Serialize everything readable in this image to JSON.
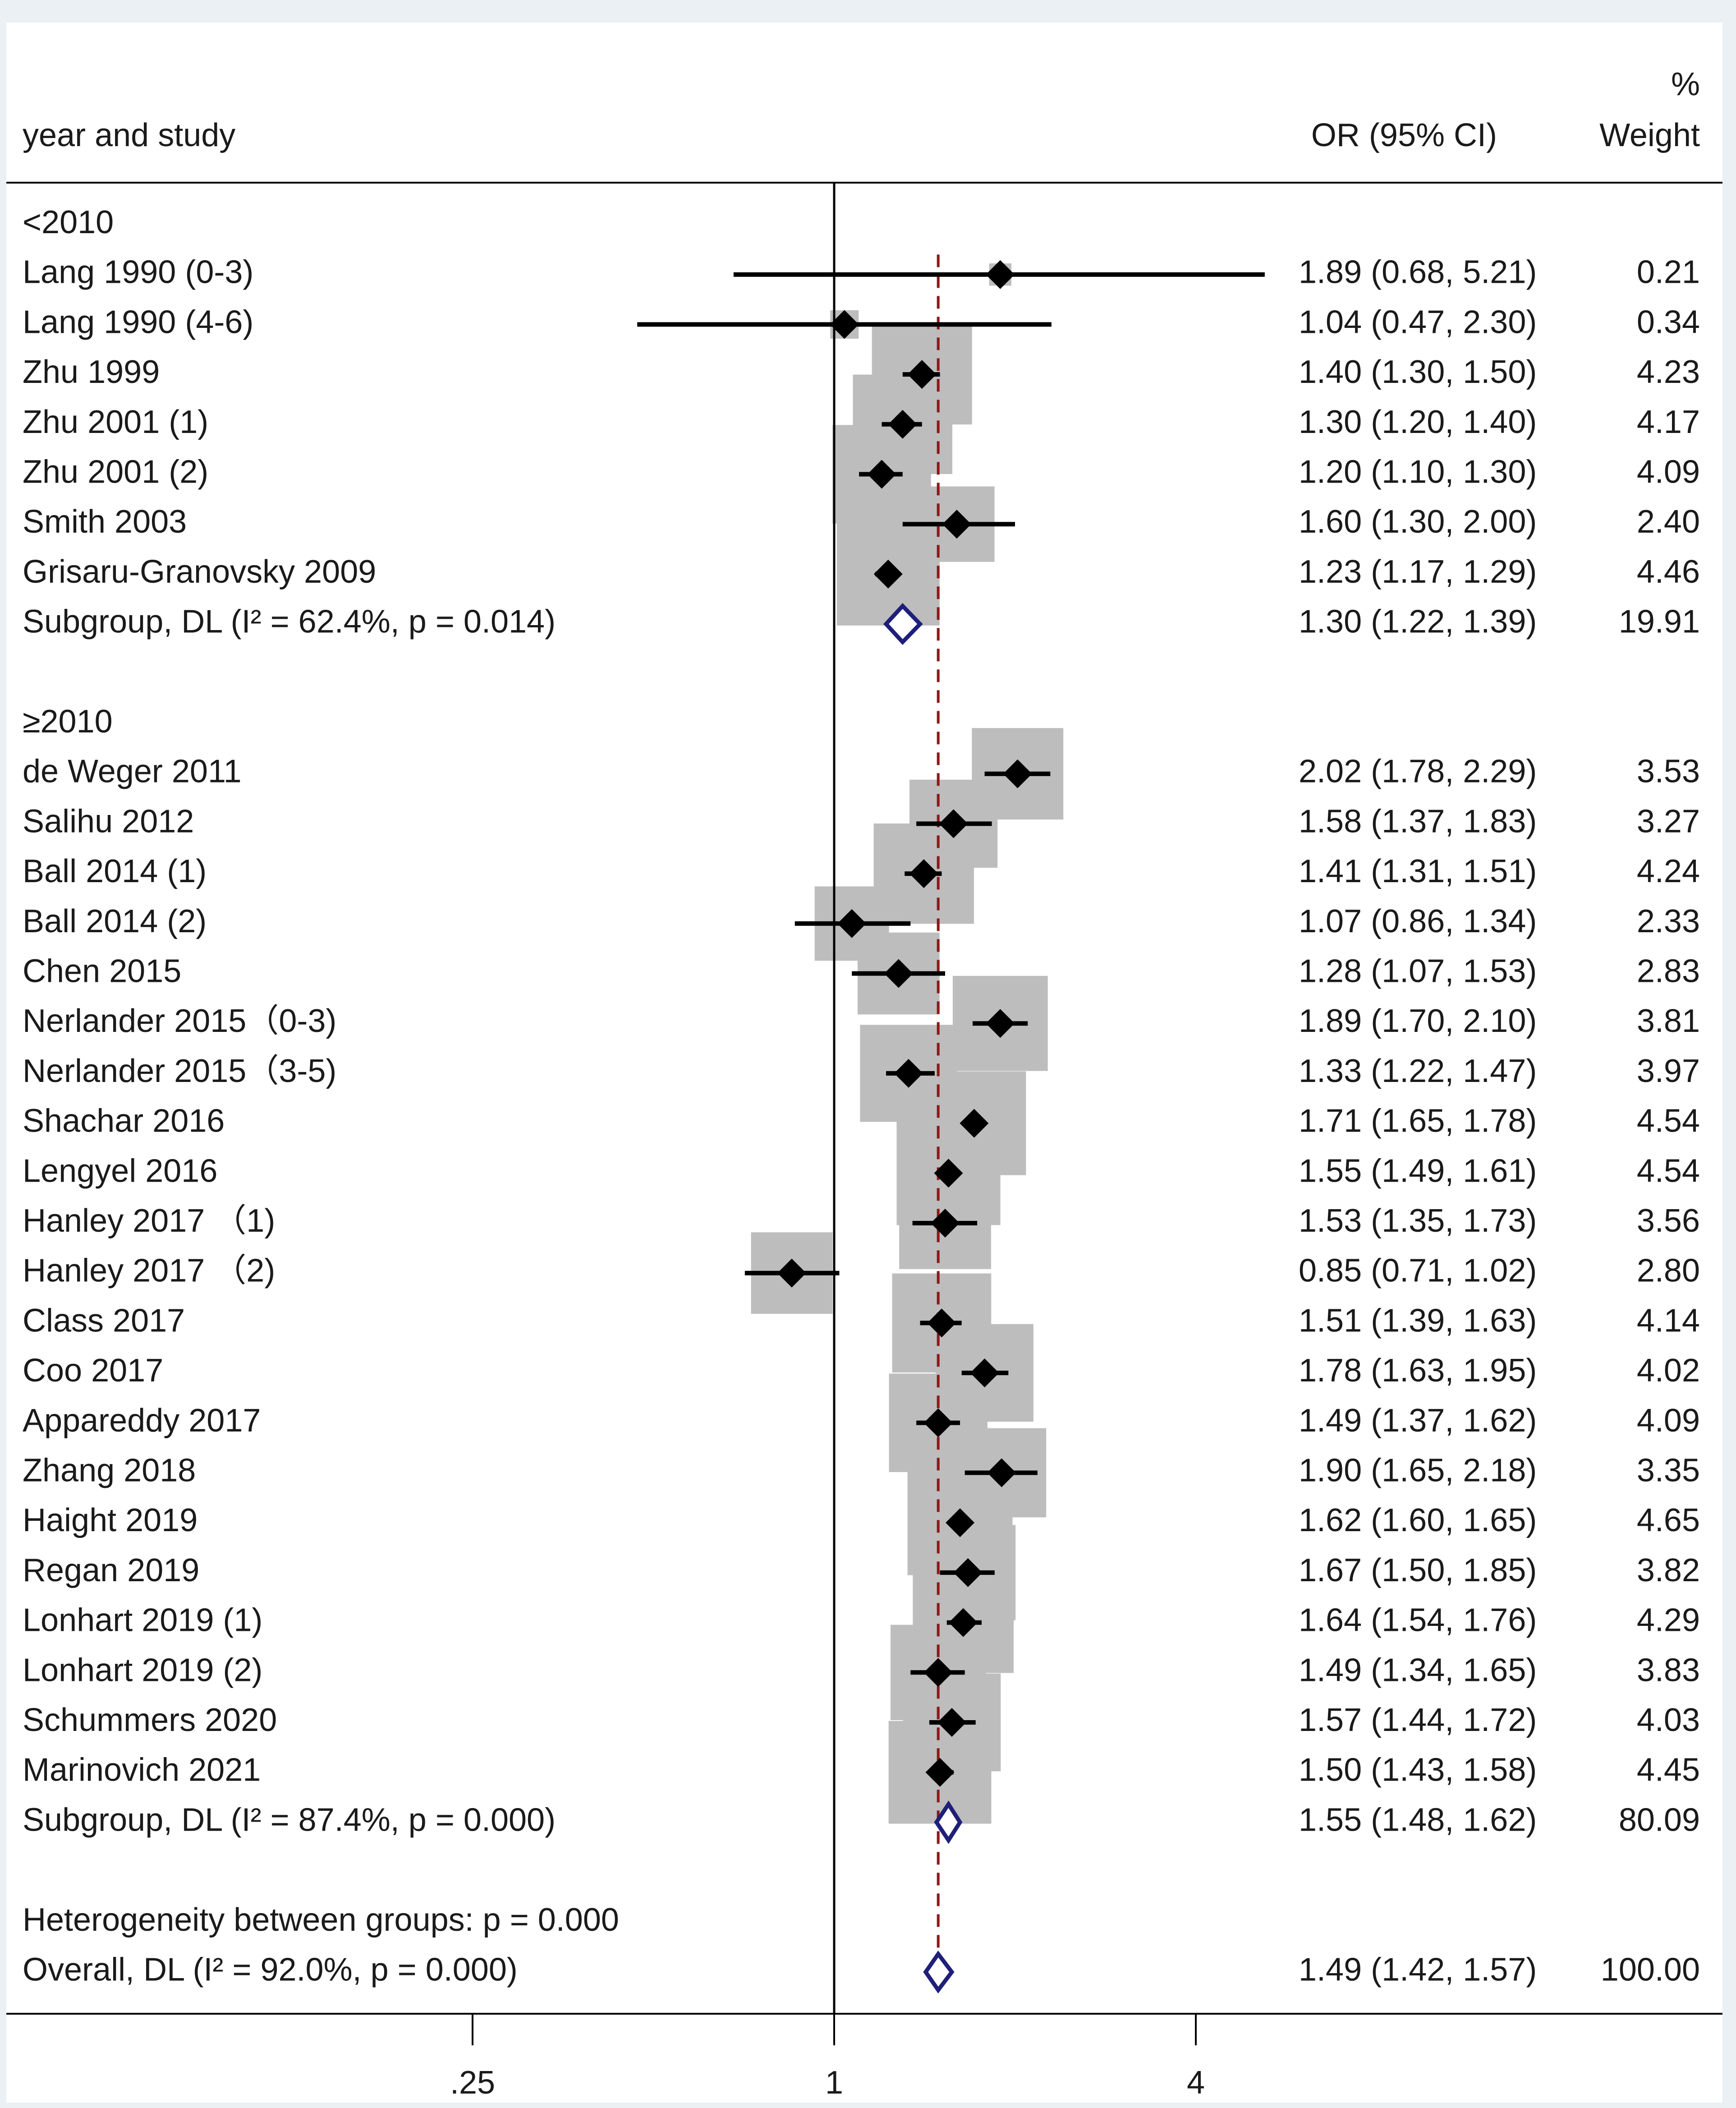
{
  "chart_data": {
    "type": "forest",
    "x_scale": "log",
    "xlim": [
      0.125,
      8
    ],
    "xticks": [
      ".25",
      "1",
      "4"
    ],
    "xtick_values": [
      0.25,
      1,
      4
    ],
    "null_line": 1,
    "overall_line": 1.49,
    "header": {
      "study_col": "year and study",
      "or_col": "OR (95% CI)",
      "weight_col_top": "%",
      "weight_col": "Weight"
    },
    "colors": {
      "background": "#eaf0f3",
      "panel": "#ffffff",
      "weight_box": "#bdbdbd",
      "point": "#000000",
      "diamond": "#1f1f7a",
      "overall_line": "#8b1a1a"
    },
    "rows": [
      {
        "type": "group",
        "label": "<2010"
      },
      {
        "type": "study",
        "label": "Lang 1990 (0-3)",
        "or": 1.89,
        "lo": 0.68,
        "hi": 5.21,
        "weight": 0.21,
        "text": "1.89 (0.68, 5.21)",
        "wtext": "0.21"
      },
      {
        "type": "study",
        "label": "Lang 1990 (4-6)",
        "or": 1.04,
        "lo": 0.47,
        "hi": 2.3,
        "weight": 0.34,
        "text": "1.04 (0.47, 2.30)",
        "wtext": "0.34"
      },
      {
        "type": "study",
        "label": "Zhu 1999",
        "or": 1.4,
        "lo": 1.3,
        "hi": 1.5,
        "weight": 4.23,
        "text": "1.40 (1.30, 1.50)",
        "wtext": "4.23"
      },
      {
        "type": "study",
        "label": "Zhu 2001 (1)",
        "or": 1.3,
        "lo": 1.2,
        "hi": 1.4,
        "weight": 4.17,
        "text": "1.30 (1.20, 1.40)",
        "wtext": "4.17"
      },
      {
        "type": "study",
        "label": "Zhu 2001 (2)",
        "or": 1.2,
        "lo": 1.1,
        "hi": 1.3,
        "weight": 4.09,
        "text": "1.20 (1.10, 1.30)",
        "wtext": "4.09"
      },
      {
        "type": "study",
        "label": "Smith 2003",
        "or": 1.6,
        "lo": 1.3,
        "hi": 2.0,
        "weight": 2.4,
        "text": "1.60 (1.30, 2.00)",
        "wtext": "2.40"
      },
      {
        "type": "study",
        "label": "Grisaru-Granovsky 2009",
        "or": 1.23,
        "lo": 1.17,
        "hi": 1.29,
        "weight": 4.46,
        "text": "1.23 (1.17, 1.29)",
        "wtext": "4.46"
      },
      {
        "type": "subgroup",
        "label": "Subgroup, DL (I² = 62.4%, p = 0.014)",
        "or": 1.3,
        "lo": 1.22,
        "hi": 1.39,
        "weight": 19.91,
        "text": "1.30 (1.22, 1.39)",
        "wtext": "19.91"
      },
      {
        "type": "blank"
      },
      {
        "type": "group",
        "label": "≥2010"
      },
      {
        "type": "study",
        "label": "de Weger 2011",
        "or": 2.02,
        "lo": 1.78,
        "hi": 2.29,
        "weight": 3.53,
        "text": "2.02 (1.78, 2.29)",
        "wtext": "3.53"
      },
      {
        "type": "study",
        "label": "Salihu 2012",
        "or": 1.58,
        "lo": 1.37,
        "hi": 1.83,
        "weight": 3.27,
        "text": "1.58 (1.37, 1.83)",
        "wtext": "3.27"
      },
      {
        "type": "study",
        "label": "Ball 2014 (1)",
        "or": 1.41,
        "lo": 1.31,
        "hi": 1.51,
        "weight": 4.24,
        "text": "1.41 (1.31, 1.51)",
        "wtext": "4.24"
      },
      {
        "type": "study",
        "label": "Ball 2014 (2)",
        "or": 1.07,
        "lo": 0.86,
        "hi": 1.34,
        "weight": 2.33,
        "text": "1.07 (0.86, 1.34)",
        "wtext": "2.33"
      },
      {
        "type": "study",
        "label": "Chen 2015",
        "or": 1.28,
        "lo": 1.07,
        "hi": 1.53,
        "weight": 2.83,
        "text": "1.28 (1.07, 1.53)",
        "wtext": "2.83"
      },
      {
        "type": "study",
        "label": "Nerlander 2015（0-3)",
        "or": 1.89,
        "lo": 1.7,
        "hi": 2.1,
        "weight": 3.81,
        "text": "1.89 (1.70, 2.10)",
        "wtext": "3.81"
      },
      {
        "type": "study",
        "label": "Nerlander 2015（3-5)",
        "or": 1.33,
        "lo": 1.22,
        "hi": 1.47,
        "weight": 3.97,
        "text": "1.33 (1.22, 1.47)",
        "wtext": "3.97"
      },
      {
        "type": "study",
        "label": "Shachar 2016",
        "or": 1.71,
        "lo": 1.65,
        "hi": 1.78,
        "weight": 4.54,
        "text": "1.71 (1.65, 1.78)",
        "wtext": "4.54"
      },
      {
        "type": "study",
        "label": "Lengyel 2016",
        "or": 1.55,
        "lo": 1.49,
        "hi": 1.61,
        "weight": 4.54,
        "text": "1.55 (1.49, 1.61)",
        "wtext": "4.54"
      },
      {
        "type": "study",
        "label": "Hanley 2017 （1)",
        "or": 1.53,
        "lo": 1.35,
        "hi": 1.73,
        "weight": 3.56,
        "text": "1.53 (1.35, 1.73)",
        "wtext": "3.56"
      },
      {
        "type": "study",
        "label": "Hanley 2017 （2)",
        "or": 0.85,
        "lo": 0.71,
        "hi": 1.02,
        "weight": 2.8,
        "text": "0.85 (0.71, 1.02)",
        "wtext": "2.80"
      },
      {
        "type": "study",
        "label": "Class 2017",
        "or": 1.51,
        "lo": 1.39,
        "hi": 1.63,
        "weight": 4.14,
        "text": "1.51 (1.39, 1.63)",
        "wtext": "4.14"
      },
      {
        "type": "study",
        "label": "Coo 2017",
        "or": 1.78,
        "lo": 1.63,
        "hi": 1.95,
        "weight": 4.02,
        "text": "1.78 (1.63, 1.95)",
        "wtext": "4.02"
      },
      {
        "type": "study",
        "label": "Appareddy 2017",
        "or": 1.49,
        "lo": 1.37,
        "hi": 1.62,
        "weight": 4.09,
        "text": "1.49 (1.37, 1.62)",
        "wtext": "4.09"
      },
      {
        "type": "study",
        "label": "Zhang 2018",
        "or": 1.9,
        "lo": 1.65,
        "hi": 2.18,
        "weight": 3.35,
        "text": "1.90 (1.65, 2.18)",
        "wtext": "3.35"
      },
      {
        "type": "study",
        "label": "Haight 2019",
        "or": 1.62,
        "lo": 1.6,
        "hi": 1.65,
        "weight": 4.65,
        "text": "1.62 (1.60, 1.65)",
        "wtext": "4.65"
      },
      {
        "type": "study",
        "label": "Regan 2019",
        "or": 1.67,
        "lo": 1.5,
        "hi": 1.85,
        "weight": 3.82,
        "text": "1.67 (1.50, 1.85)",
        "wtext": "3.82"
      },
      {
        "type": "study",
        "label": "Lonhart 2019 (1)",
        "or": 1.64,
        "lo": 1.54,
        "hi": 1.76,
        "weight": 4.29,
        "text": "1.64 (1.54, 1.76)",
        "wtext": "4.29"
      },
      {
        "type": "study",
        "label": "Lonhart 2019 (2)",
        "or": 1.49,
        "lo": 1.34,
        "hi": 1.65,
        "weight": 3.83,
        "text": "1.49 (1.34, 1.65)",
        "wtext": "3.83"
      },
      {
        "type": "study",
        "label": "Schummers 2020",
        "or": 1.57,
        "lo": 1.44,
        "hi": 1.72,
        "weight": 4.03,
        "text": "1.57 (1.44, 1.72)",
        "wtext": "4.03"
      },
      {
        "type": "study",
        "label": "Marinovich 2021",
        "or": 1.5,
        "lo": 1.43,
        "hi": 1.58,
        "weight": 4.45,
        "text": "1.50 (1.43, 1.58)",
        "wtext": "4.45"
      },
      {
        "type": "subgroup",
        "label": "Subgroup, DL (I² = 87.4%, p = 0.000)",
        "or": 1.55,
        "lo": 1.48,
        "hi": 1.62,
        "weight": 80.09,
        "text": "1.55 (1.48, 1.62)",
        "wtext": "80.09"
      },
      {
        "type": "blank"
      },
      {
        "type": "note",
        "label": "Heterogeneity between groups: p = 0.000"
      },
      {
        "type": "overall",
        "label": "Overall, DL (I² = 92.0%, p = 0.000)",
        "or": 1.49,
        "lo": 1.42,
        "hi": 1.57,
        "weight": 100.0,
        "text": "1.49 (1.42, 1.57)",
        "wtext": "100.00"
      }
    ]
  }
}
